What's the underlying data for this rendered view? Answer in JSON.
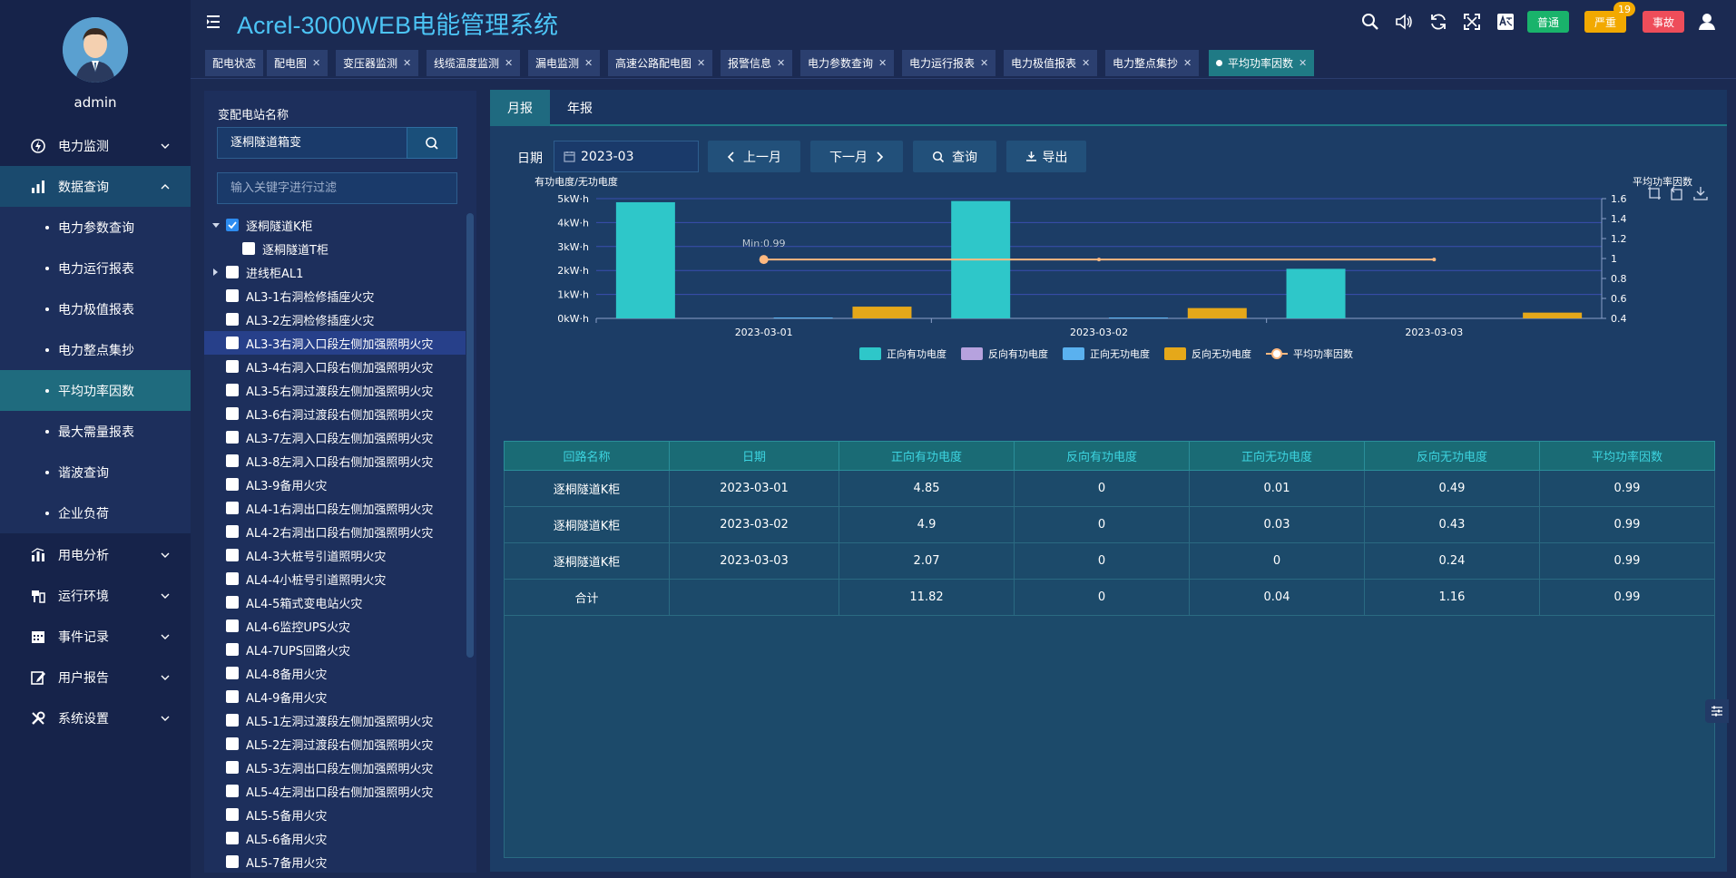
{
  "app": {
    "title": "Acrel-3000WEB电能管理系统"
  },
  "user": {
    "name": "admin"
  },
  "sidebar": {
    "items": [
      {
        "label": "电力监测"
      },
      {
        "label": "数据查询"
      },
      {
        "label": "用电分析"
      },
      {
        "label": "运行环境"
      },
      {
        "label": "事件记录"
      },
      {
        "label": "用户报告"
      },
      {
        "label": "系统设置"
      }
    ],
    "sub_items": [
      {
        "label": "电力参数查询"
      },
      {
        "label": "电力运行报表"
      },
      {
        "label": "电力极值报表"
      },
      {
        "label": "电力整点集抄"
      },
      {
        "label": "平均功率因数"
      },
      {
        "label": "最大需量报表"
      },
      {
        "label": "谐波查询"
      },
      {
        "label": "企业负荷"
      }
    ]
  },
  "header": {
    "badges": {
      "normal": "普通",
      "fault": "严重",
      "incident": "事故",
      "count": "19"
    }
  },
  "tabs": [
    {
      "label": "配电状态"
    },
    {
      "label": "配电图"
    },
    {
      "label": "变压器监测"
    },
    {
      "label": "线缆温度监测"
    },
    {
      "label": "漏电监测"
    },
    {
      "label": "高速公路配电图"
    },
    {
      "label": "报警信息"
    },
    {
      "label": "电力参数查询"
    },
    {
      "label": "电力运行报表"
    },
    {
      "label": "电力极值报表"
    },
    {
      "label": "电力整点集抄"
    },
    {
      "label": "平均功率因数"
    }
  ],
  "left": {
    "station_label": "变配电站名称",
    "station_value": "逐桐隧道箱变",
    "filter_placeholder": "输入关键字进行过滤",
    "tree": [
      {
        "label": "逐桐隧道K柜"
      },
      {
        "label": "逐桐隧道T柜"
      },
      {
        "label": "进线柜AL1"
      },
      {
        "label": "AL3-1右洞检修插座火灾"
      },
      {
        "label": "AL3-2左洞检修插座火灾"
      },
      {
        "label": "AL3-3右洞入口段左侧加强照明火灾"
      },
      {
        "label": "AL3-4右洞入口段右侧加强照明火灾"
      },
      {
        "label": "AL3-5右洞过渡段左侧加强照明火灾"
      },
      {
        "label": "AL3-6右洞过渡段右侧加强照明火灾"
      },
      {
        "label": "AL3-7左洞入口段左侧加强照明火灾"
      },
      {
        "label": "AL3-8左洞入口段右侧加强照明火灾"
      },
      {
        "label": "AL3-9备用火灾"
      },
      {
        "label": "AL4-1右洞出口段左侧加强照明火灾"
      },
      {
        "label": "AL4-2右洞出口段右侧加强照明火灾"
      },
      {
        "label": "AL4-3大桩号引道照明火灾"
      },
      {
        "label": "AL4-4小桩号引道照明火灾"
      },
      {
        "label": "AL4-5箱式变电站火灾"
      },
      {
        "label": "AL4-6监控UPS火灾"
      },
      {
        "label": "AL4-7UPS回路火灾"
      },
      {
        "label": "AL4-8备用火灾"
      },
      {
        "label": "AL4-9备用火灾"
      },
      {
        "label": "AL5-1左洞过渡段左侧加强照明火灾"
      },
      {
        "label": "AL5-2左洞过渡段右侧加强照明火灾"
      },
      {
        "label": "AL5-3左洞出口段左侧加强照明火灾"
      },
      {
        "label": "AL5-4左洞出口段右侧加强照明火灾"
      },
      {
        "label": "AL5-5备用火灾"
      },
      {
        "label": "AL5-6备用火灾"
      },
      {
        "label": "AL5-7备用火灾"
      }
    ]
  },
  "report": {
    "tabs": [
      "月报",
      "年报"
    ],
    "date_label": "日期",
    "date_value": "2023-03",
    "prev_label": "上一月",
    "next_label": "下一月",
    "query_label": "查询",
    "export_label": "导出"
  },
  "chart_data": {
    "type": "bar",
    "categories": [
      "2023-03-01",
      "2023-03-02",
      "2023-03-03"
    ],
    "ylabel": "有功电度/无功电度",
    "y2label": "平均功率因数",
    "ylim": [
      0,
      5
    ],
    "yticks": [
      "0kW·h",
      "1kW·h",
      "2kW·h",
      "3kW·h",
      "4kW·h",
      "5kW·h"
    ],
    "y2lim": [
      0.4,
      1.6
    ],
    "y2ticks": [
      "0.4",
      "0.6",
      "0.8",
      "1",
      "1.2",
      "1.4",
      "1.6"
    ],
    "series": [
      {
        "name": "正向有功电度",
        "color": "#2ec7c9",
        "values": [
          4.85,
          4.9,
          2.07
        ]
      },
      {
        "name": "反向有功电度",
        "color": "#b6a2de",
        "values": [
          0,
          0,
          0
        ]
      },
      {
        "name": "正向无功电度",
        "color": "#5ab1ef",
        "values": [
          0.01,
          0.03,
          0
        ]
      },
      {
        "name": "反向无功电度",
        "color": "#e5a81a",
        "values": [
          0.49,
          0.43,
          0.24
        ]
      }
    ],
    "line": {
      "name": "平均功率因数",
      "color": "#ffb980",
      "values": [
        0.99,
        0.99,
        0.99
      ]
    },
    "annotation": "Min:0.99",
    "legend": "bottom-center"
  },
  "table": {
    "headers": [
      "回路名称",
      "日期",
      "正向有功电度",
      "反向有功电度",
      "正向无功电度",
      "反向无功电度",
      "平均功率因数"
    ],
    "rows": [
      [
        "逐桐隧道K柜",
        "2023-03-01",
        "4.85",
        "0",
        "0.01",
        "0.49",
        "0.99"
      ],
      [
        "逐桐隧道K柜",
        "2023-03-02",
        "4.9",
        "0",
        "0.03",
        "0.43",
        "0.99"
      ],
      [
        "逐桐隧道K柜",
        "2023-03-03",
        "2.07",
        "0",
        "0",
        "0.24",
        "0.99"
      ],
      [
        "合计",
        "",
        "11.82",
        "0",
        "0.04",
        "1.16",
        "0.99"
      ]
    ]
  }
}
